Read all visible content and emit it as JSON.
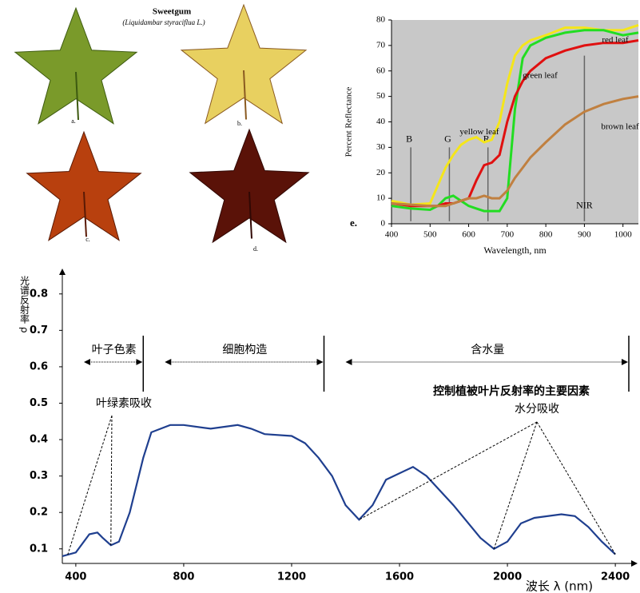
{
  "leaf_panel": {
    "title": "Sweetgum",
    "subtitle": "(Liquidambar styraciflua L.)",
    "labels": [
      "a.",
      "b.",
      "c.",
      "d."
    ]
  },
  "chart_data": [
    {
      "type": "line",
      "panel_label": "e.",
      "x_label": "Wavelength, nm",
      "y_label": "Percent Reflectance",
      "x": [
        400,
        450,
        500,
        520,
        540,
        560,
        580,
        600,
        620,
        640,
        660,
        680,
        700,
        720,
        740,
        760,
        800,
        850,
        900,
        950,
        1000,
        1040
      ],
      "series": [
        {
          "name": "yellow leaf",
          "color": "#f5e61a",
          "values": [
            9,
            7.5,
            8,
            15,
            22,
            27,
            31,
            33,
            34,
            32,
            33,
            40,
            55,
            66,
            70,
            72,
            74,
            77,
            77,
            76,
            76,
            78
          ]
        },
        {
          "name": "green leaf",
          "color": "#22dd22",
          "values": [
            7,
            6,
            5.5,
            7,
            10,
            11,
            9,
            7,
            6,
            5,
            5,
            5,
            10,
            45,
            65,
            70,
            73,
            75,
            76,
            76,
            74,
            75
          ]
        },
        {
          "name": "red leaf",
          "color": "#e01010",
          "values": [
            8,
            7,
            7,
            7,
            8,
            8,
            9,
            10,
            17,
            23,
            24,
            27,
            40,
            50,
            56,
            60,
            65,
            68,
            70,
            71,
            71,
            72
          ]
        },
        {
          "name": "brown leaf",
          "color": "#c08040",
          "values": [
            8,
            7.5,
            7,
            7,
            7,
            8,
            9,
            10,
            10,
            11,
            10,
            10,
            13,
            18,
            22,
            26,
            32,
            39,
            44,
            47,
            49,
            50
          ]
        }
      ],
      "reference_lines": [
        {
          "label": "B",
          "x": 450
        },
        {
          "label": "G",
          "x": 550
        },
        {
          "label": "R",
          "x": 650
        },
        {
          "label": "NIR",
          "x": 900
        }
      ],
      "xlim": [
        400,
        1040
      ],
      "xticks": [
        400,
        500,
        600,
        700,
        800,
        900,
        1000
      ],
      "ylim": [
        0,
        80
      ],
      "yticks": [
        0,
        10,
        20,
        30,
        40,
        50,
        60,
        70,
        80
      ],
      "background": "#c8c8c8"
    },
    {
      "type": "line",
      "x_label": "波长 λ (nm)",
      "y_label": "光谱反射率 ρ",
      "title": "控制植被叶片反射率的主要因素",
      "x": [
        350,
        400,
        450,
        480,
        500,
        530,
        560,
        600,
        650,
        680,
        750,
        800,
        900,
        1000,
        1050,
        1100,
        1200,
        1250,
        1300,
        1350,
        1400,
        1450,
        1500,
        1550,
        1650,
        1700,
        1800,
        1900,
        1950,
        2000,
        2050,
        2100,
        2200,
        2250,
        2300,
        2350,
        2400
      ],
      "series": [
        {
          "color": "#1f3f8f",
          "values": [
            0.08,
            0.09,
            0.14,
            0.145,
            0.13,
            0.11,
            0.12,
            0.2,
            0.35,
            0.42,
            0.44,
            0.44,
            0.43,
            0.44,
            0.43,
            0.415,
            0.41,
            0.39,
            0.35,
            0.3,
            0.22,
            0.18,
            0.22,
            0.29,
            0.325,
            0.3,
            0.22,
            0.13,
            0.1,
            0.12,
            0.17,
            0.185,
            0.195,
            0.19,
            0.16,
            0.12,
            0.085
          ]
        }
      ],
      "regions": [
        {
          "label": "叶子色素",
          "start": 350,
          "end": 650
        },
        {
          "label": "细胞构造",
          "start": 650,
          "end": 1320
        },
        {
          "label": "含水量",
          "start": 1320,
          "end": 2450
        }
      ],
      "annotations": [
        {
          "label": "叶绿素吸收",
          "targets": [
            370,
            530
          ]
        },
        {
          "label": "水分吸收",
          "targets": [
            1450,
            1950,
            2400
          ]
        }
      ],
      "xlim": [
        350,
        2450
      ],
      "xticks": [
        400,
        800,
        1200,
        1600,
        2000,
        2400
      ],
      "ylim": [
        0.06,
        0.85
      ],
      "yticks": [
        0.1,
        0.2,
        0.3,
        0.4,
        0.5,
        0.6,
        0.7,
        0.8
      ]
    }
  ]
}
